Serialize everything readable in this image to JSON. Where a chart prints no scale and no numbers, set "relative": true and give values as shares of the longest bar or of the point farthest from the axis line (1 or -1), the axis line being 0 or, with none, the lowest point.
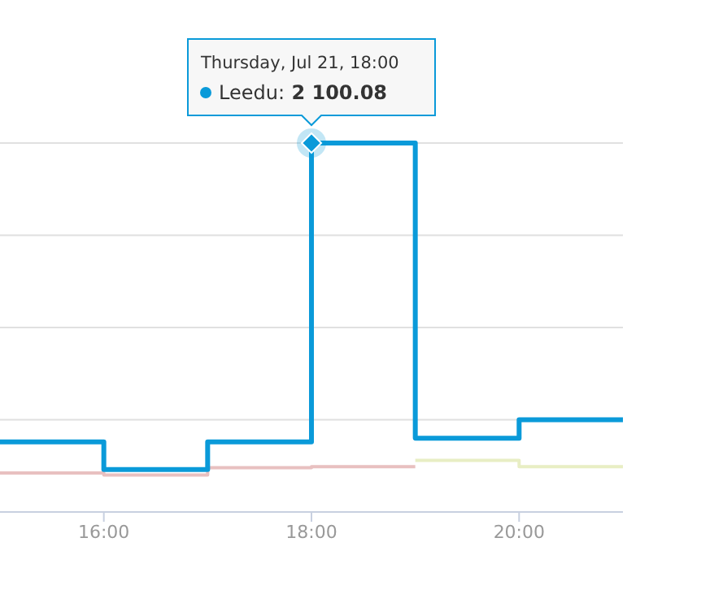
{
  "chart_data": {
    "type": "step",
    "relative": true,
    "xlim": [
      15,
      21
    ],
    "xticks": [
      {
        "value": 16,
        "label": "16:00"
      },
      {
        "value": 18,
        "label": "18:00"
      },
      {
        "value": 20,
        "label": "20:00"
      }
    ],
    "grid": "y",
    "series": [
      {
        "color": "#e8c0c0",
        "x": [
          15,
          16,
          17,
          18,
          19
        ],
        "values": [
          0.106,
          0.1,
          0.12,
          0.123,
          0.123
        ]
      },
      {
        "color": "#e8eec4",
        "x": [
          19,
          20,
          21
        ],
        "values": [
          0.14,
          0.123,
          0.123
        ]
      },
      {
        "color": "#0a9ad9",
        "x": [
          15,
          16,
          17,
          18,
          19,
          20,
          21
        ],
        "values": [
          0.19,
          0.115,
          0.19,
          1,
          0.2,
          0.25,
          0.25
        ]
      }
    ],
    "annotations": [
      "Thursday, Jul 21, 18:00",
      {
        "text": "Leedu: 2 100.08",
        "x": 18,
        "y": 1
      }
    ]
  }
}
